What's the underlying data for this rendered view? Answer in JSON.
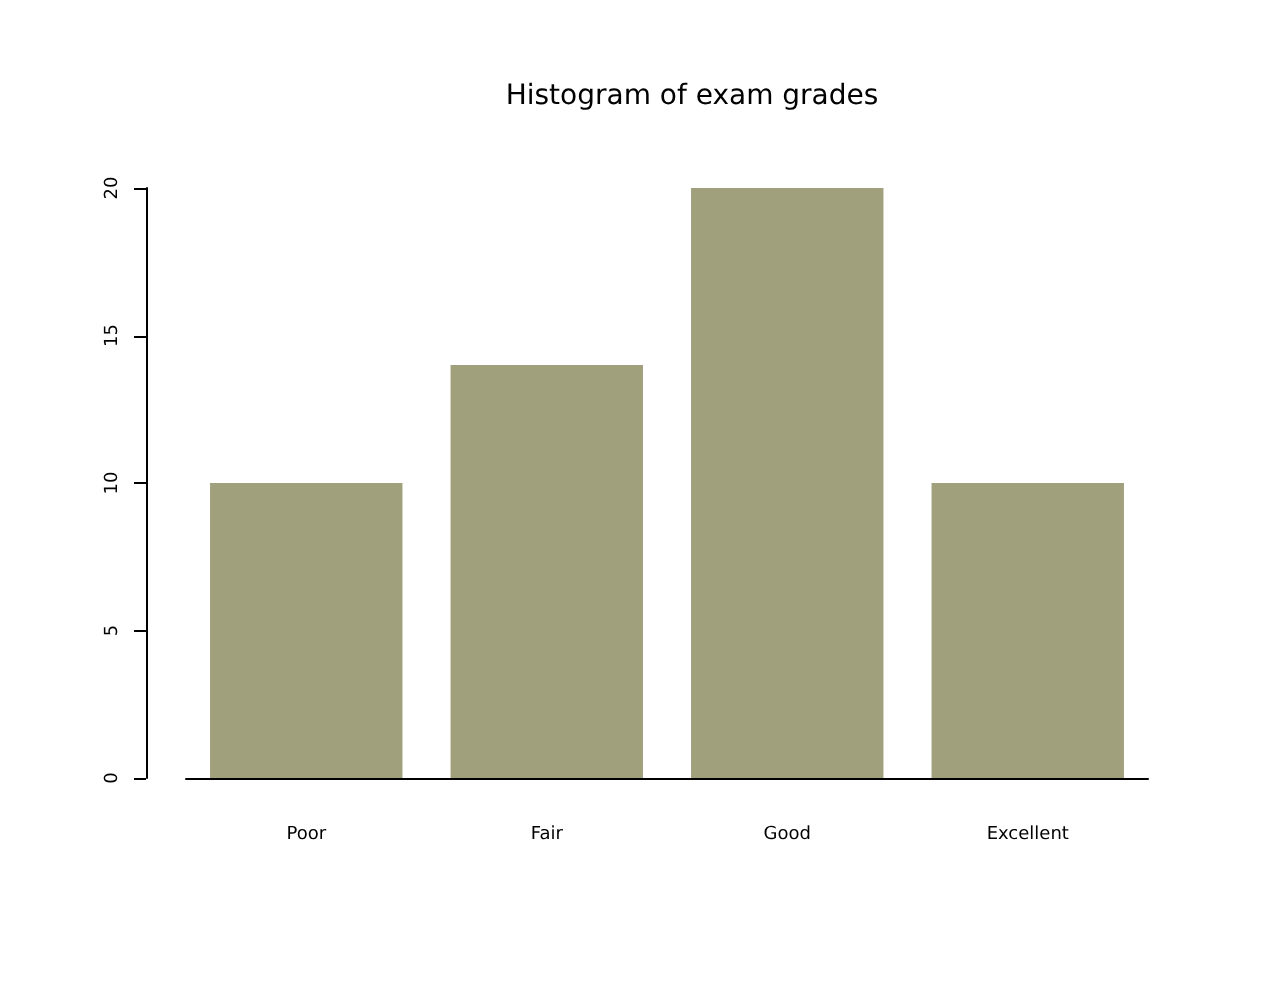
{
  "chart_data": {
    "type": "bar",
    "title": "Histogram of exam grades",
    "categories": [
      "Poor",
      "Fair",
      "Good",
      "Excellent"
    ],
    "values": [
      10,
      14,
      20,
      10
    ],
    "color": "#a0a07c",
    "ylim": [
      0,
      20
    ],
    "yticks": [
      0,
      5,
      10,
      15,
      20
    ],
    "grid": false
  }
}
